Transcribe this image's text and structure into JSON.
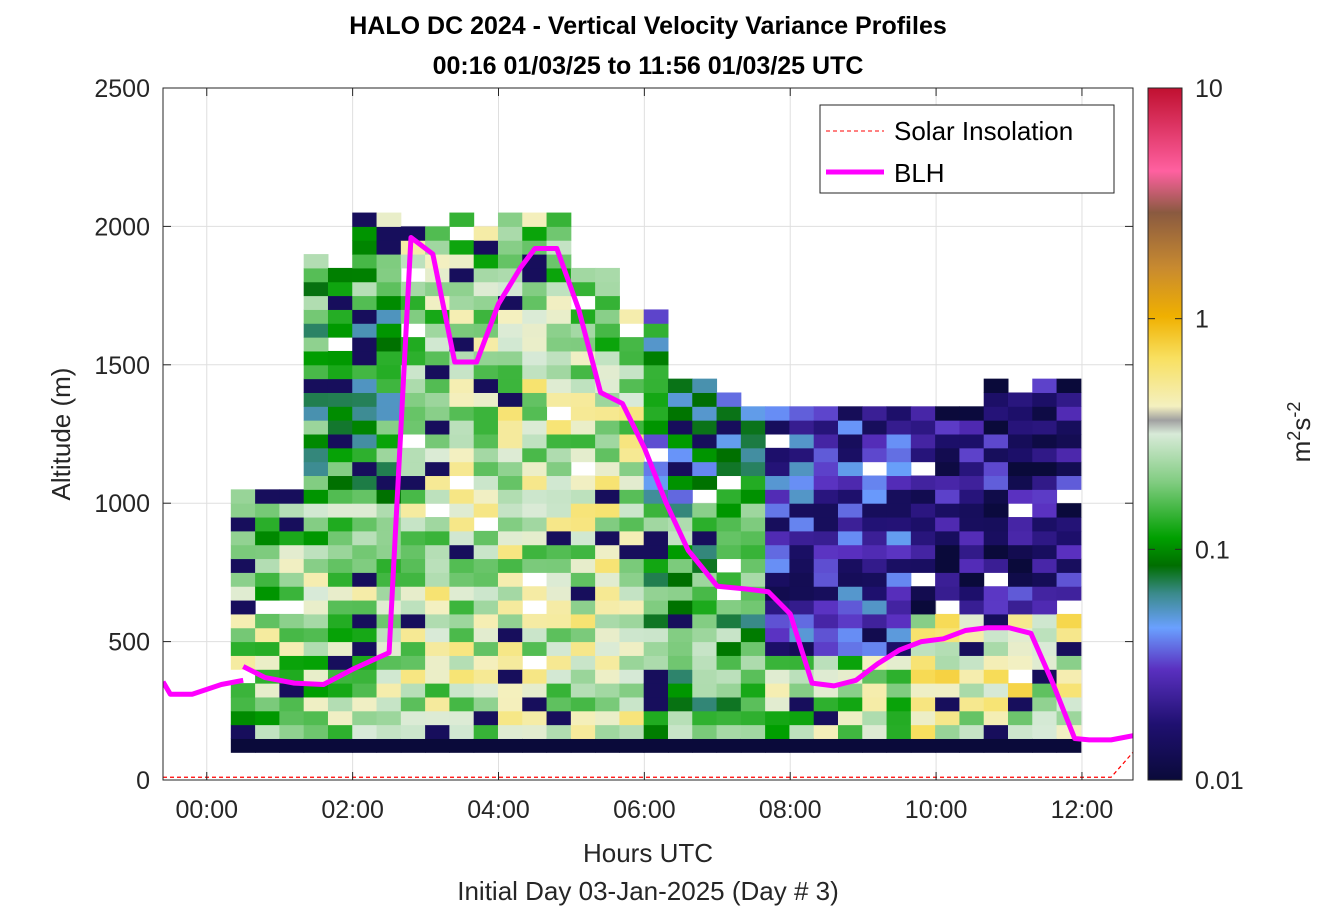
{
  "chart_data": {
    "type": "heatmap",
    "title": "HALO DC 2024 - Vertical Velocity Variance Profiles",
    "subtitle": "00:16 01/03/25 to 11:56 01/03/25  UTC",
    "xlabel": "Hours UTC",
    "xlabel2": "Initial Day 03-Jan-2025 (Day # 3)",
    "ylabel": "Altitude (m)",
    "xlim_hours": [
      -0.6,
      12.7
    ],
    "ylim": [
      0,
      2500
    ],
    "x_ticks": [
      0,
      2,
      4,
      6,
      8,
      10,
      12
    ],
    "x_tick_labels": [
      "00:00",
      "02:00",
      "04:00",
      "06:00",
      "08:00",
      "10:00",
      "12:00"
    ],
    "y_ticks": [
      0,
      500,
      1000,
      1500,
      2000,
      2500
    ],
    "y_tick_labels": [
      "0",
      "500",
      "1000",
      "1500",
      "2000",
      "2500"
    ],
    "grid": true,
    "colorbar": {
      "scale": "log",
      "range": [
        0.01,
        10
      ],
      "ticks": [
        0.01,
        0.1,
        1,
        10
      ],
      "tick_labels": [
        "0.01",
        "0.1",
        "1",
        "10"
      ],
      "label": "m",
      "label_sup1": "2",
      "label_mid": "s",
      "label_sup2": "-2"
    },
    "legend": {
      "placement": "top-right",
      "entries": [
        {
          "label": "Solar Insolation",
          "color": "#ff0000",
          "style": "dashed"
        },
        {
          "label": "BLH",
          "color": "#ff00ff",
          "style": "solid"
        }
      ]
    },
    "heatmap_grid": {
      "time_step_hours": 0.333,
      "alt_step_m": 50
    },
    "blh_series": [
      {
        "name": "BLH",
        "x": [
          -0.6,
          -0.5,
          -0.2,
          0.2,
          0.5
        ],
        "y": [
          355,
          310,
          310,
          345,
          360
        ]
      },
      {
        "name": "BLH",
        "x": [
          0.5,
          0.8,
          1.2,
          1.6,
          2.0,
          2.5,
          2.8,
          3.1,
          3.4,
          3.7,
          4.0,
          4.3,
          4.5,
          4.8,
          5.1,
          5.4,
          5.7,
          6.0,
          6.3,
          6.6,
          7.0,
          7.4,
          7.7,
          8.0,
          8.3,
          8.6,
          8.9,
          9.2,
          9.5,
          9.8,
          10.1,
          10.4,
          10.7,
          11.0,
          11.3,
          11.6,
          11.9,
          12.1,
          12.4,
          12.7
        ],
        "y": [
          410,
          370,
          350,
          345,
          400,
          460,
          1960,
          1900,
          1510,
          1510,
          1720,
          1850,
          1920,
          1920,
          1700,
          1400,
          1360,
          1200,
          1000,
          830,
          700,
          690,
          680,
          600,
          350,
          340,
          360,
          420,
          470,
          500,
          510,
          540,
          550,
          550,
          530,
          350,
          150,
          145,
          145,
          160
        ]
      }
    ],
    "solar_insolation": {
      "x": [
        -0.6,
        12.4,
        12.7
      ],
      "y": [
        10,
        10,
        100
      ]
    },
    "colors": {
      "blh": "#ff00ff",
      "solar": "#ff0000",
      "grid": "#dfdfdf",
      "axes": "#262626",
      "missing": "#ffffff"
    }
  }
}
